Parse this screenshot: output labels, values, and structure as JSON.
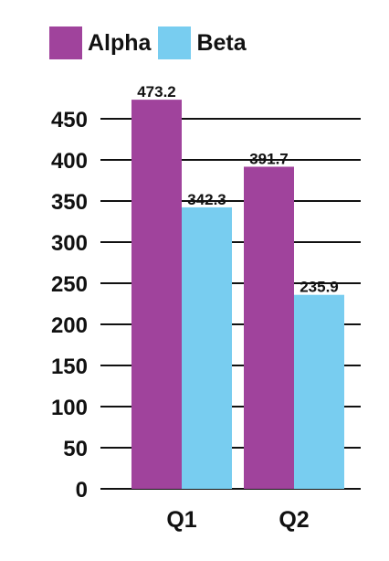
{
  "chart_data": {
    "type": "bar",
    "categories": [
      "Q1",
      "Q2"
    ],
    "series": [
      {
        "name": "Alpha",
        "color": "#a0439c",
        "values": [
          473.2,
          391.7
        ]
      },
      {
        "name": "Beta",
        "color": "#78cdf0",
        "values": [
          342.3,
          235.9
        ]
      }
    ],
    "data_labels": [
      [
        "473.2",
        "391.7"
      ],
      [
        "342.3",
        "235.9"
      ]
    ],
    "y_ticks": [
      0,
      50,
      100,
      150,
      200,
      250,
      300,
      350,
      400,
      450
    ],
    "ylim": [
      0,
      450
    ],
    "grid": true,
    "legend_position": "top-left"
  }
}
